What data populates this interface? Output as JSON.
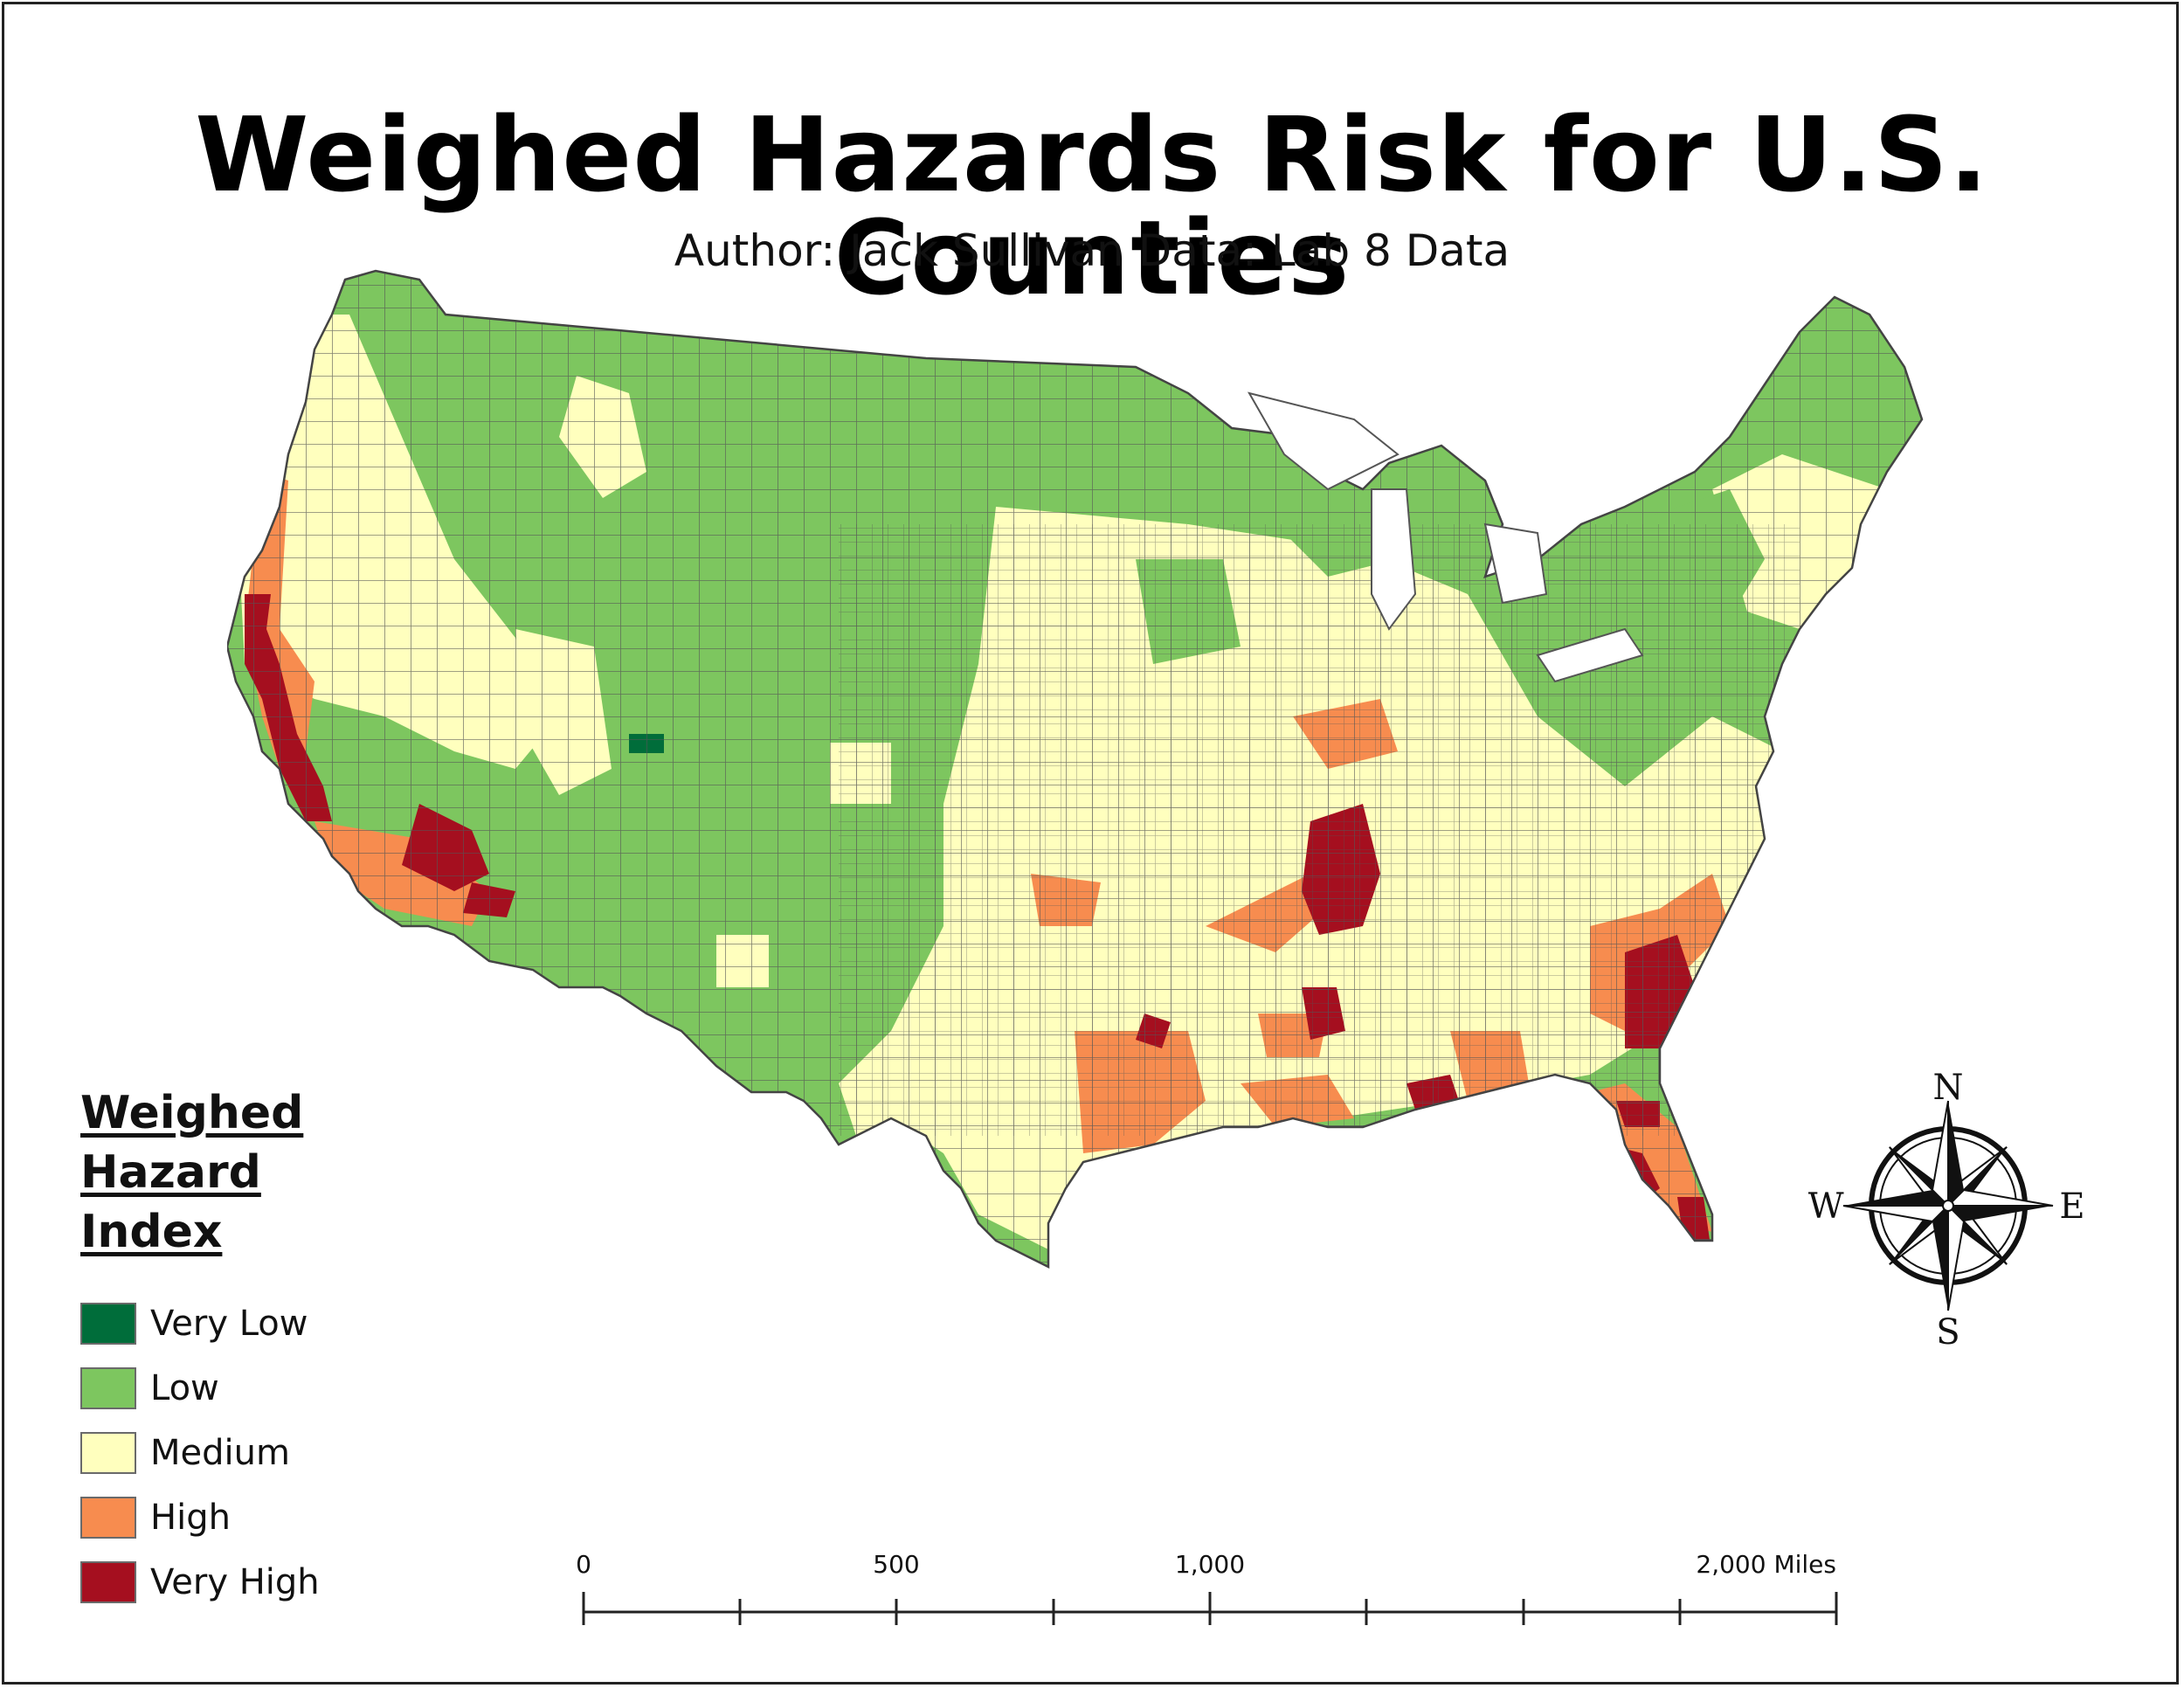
{
  "title": "Weighed Hazards Risk for U.S. Counties",
  "subtitle": "Author: Jack Sullivan Data: Lab 8 Data",
  "legend": {
    "title_lines": [
      "Weighed",
      "Hazard",
      "Index"
    ],
    "items": [
      {
        "label": "Very Low",
        "color": "#006d3a"
      },
      {
        "label": "Low",
        "color": "#7dc65f"
      },
      {
        "label": "Medium",
        "color": "#ffffbe"
      },
      {
        "label": "High",
        "color": "#f78c4f"
      },
      {
        "label": "Very High",
        "color": "#a50f1f"
      }
    ]
  },
  "scale_bar": {
    "labels": [
      "0",
      "500",
      "1,000",
      "2,000 Miles"
    ],
    "values_miles": [
      0,
      500,
      1000,
      2000
    ],
    "unit": "Miles"
  },
  "compass": {
    "north": "N",
    "south": "S",
    "east": "E",
    "west": "W"
  },
  "map": {
    "region": "Contiguous United States, county level",
    "classes": [
      "Very Low",
      "Low",
      "Medium",
      "High",
      "Very High"
    ],
    "very_high_areas": [
      "Coastal California",
      "Southern California",
      "Western Tennessee",
      "Central Mississippi",
      "Houston area",
      "South Carolina",
      "Florida panhandle",
      "South Florida"
    ],
    "high_areas": [
      "Gulf Coast",
      "Florida",
      "Carolinas",
      "Texas coast"
    ],
    "county_border_color": "#555555"
  }
}
